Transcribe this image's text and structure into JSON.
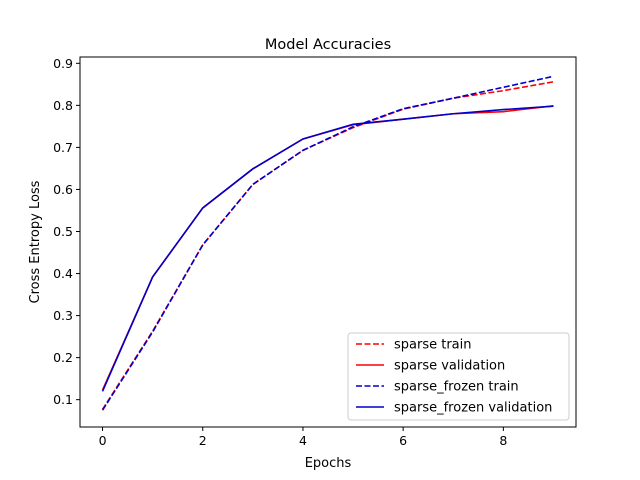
{
  "chart_data": {
    "type": "line",
    "title": "Model Accuracies",
    "xlabel": "Epochs",
    "ylabel": "Cross Entropy Loss",
    "xlim": [
      -0.45,
      9.45
    ],
    "ylim": [
      0.035,
      0.915
    ],
    "xticks": [
      0,
      2,
      4,
      6,
      8
    ],
    "yticks": [
      0.1,
      0.2,
      0.3,
      0.4,
      0.5,
      0.6,
      0.7,
      0.8,
      0.9
    ],
    "grid": false,
    "legend_position": "lower-right",
    "x": [
      0,
      1,
      2,
      3,
      4,
      5,
      6,
      7,
      8,
      9
    ],
    "series": [
      {
        "name": "sparse train",
        "color": "#ff0000",
        "style": "dashed",
        "values": [
          0.077,
          0.263,
          0.468,
          0.612,
          0.693,
          0.747,
          0.791,
          0.817,
          0.835,
          0.856
        ]
      },
      {
        "name": "sparse validation",
        "color": "#ff0000",
        "style": "solid",
        "values": [
          0.123,
          0.392,
          0.556,
          0.649,
          0.72,
          0.754,
          0.767,
          0.78,
          0.785,
          0.799
        ]
      },
      {
        "name": "sparse_frozen train",
        "color": "#0000cc",
        "style": "dashed",
        "values": [
          0.075,
          0.261,
          0.468,
          0.612,
          0.693,
          0.749,
          0.792,
          0.817,
          0.843,
          0.869
        ]
      },
      {
        "name": "sparse_frozen validation",
        "color": "#0000cc",
        "style": "solid",
        "values": [
          0.12,
          0.392,
          0.556,
          0.649,
          0.72,
          0.755,
          0.767,
          0.78,
          0.79,
          0.798
        ]
      }
    ]
  }
}
